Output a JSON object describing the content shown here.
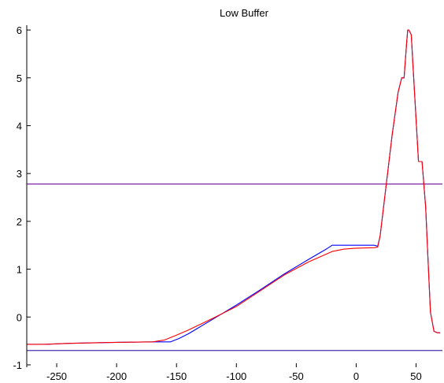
{
  "chart_data": {
    "type": "line",
    "title": "Low Buffer",
    "xlabel": "",
    "ylabel": "",
    "xlim": [
      -275,
      72
    ],
    "ylim": [
      -1.05,
      6.1
    ],
    "xticks": [
      -250,
      -200,
      -150,
      -100,
      -50,
      0,
      50
    ],
    "yticks": [
      -1,
      0,
      1,
      2,
      3,
      4,
      5,
      6
    ],
    "grid": false,
    "series": [
      {
        "color": "#0000ff",
        "x": [
          -275,
          -260,
          -240,
          -200,
          -170,
          -160,
          -155,
          -148,
          -140,
          -120,
          -100,
          -80,
          -60,
          -40,
          -25,
          -20,
          0,
          15,
          18,
          20,
          25,
          30,
          35,
          38,
          40,
          42,
          43,
          44,
          46,
          48,
          52,
          55,
          58,
          60,
          62,
          65,
          68,
          70
        ],
        "y": [
          -0.57,
          -0.57,
          -0.55,
          -0.53,
          -0.52,
          -0.52,
          -0.52,
          -0.45,
          -0.35,
          -0.05,
          0.25,
          0.57,
          0.9,
          1.2,
          1.42,
          1.5,
          1.5,
          1.5,
          1.48,
          1.7,
          2.75,
          3.8,
          4.7,
          5.0,
          5.0,
          5.7,
          6.0,
          6.0,
          5.9,
          5.0,
          3.25,
          3.25,
          2.3,
          1.2,
          0.1,
          -0.3,
          -0.33,
          -0.33
        ]
      },
      {
        "color": "#ff0000",
        "x": [
          -275,
          -260,
          -240,
          -200,
          -170,
          -160,
          -150,
          -140,
          -120,
          -100,
          -80,
          -60,
          -40,
          -20,
          -10,
          0,
          15,
          18,
          20,
          25,
          30,
          35,
          38,
          40,
          42,
          43,
          44,
          46,
          48,
          52,
          55,
          58,
          60,
          62,
          65,
          68,
          70
        ],
        "y": [
          -0.57,
          -0.57,
          -0.55,
          -0.53,
          -0.52,
          -0.48,
          -0.38,
          -0.27,
          -0.03,
          0.22,
          0.55,
          0.88,
          1.15,
          1.37,
          1.42,
          1.44,
          1.45,
          1.46,
          1.7,
          2.75,
          3.8,
          4.7,
          5.0,
          5.0,
          5.7,
          6.0,
          6.0,
          5.9,
          5.0,
          3.25,
          3.25,
          2.3,
          1.2,
          0.1,
          -0.3,
          -0.33,
          -0.33
        ]
      }
    ],
    "hlines": [
      {
        "y": 2.78,
        "color": "#7a1fa2"
      },
      {
        "y": -0.7,
        "color": "#4b2fb0"
      }
    ]
  }
}
